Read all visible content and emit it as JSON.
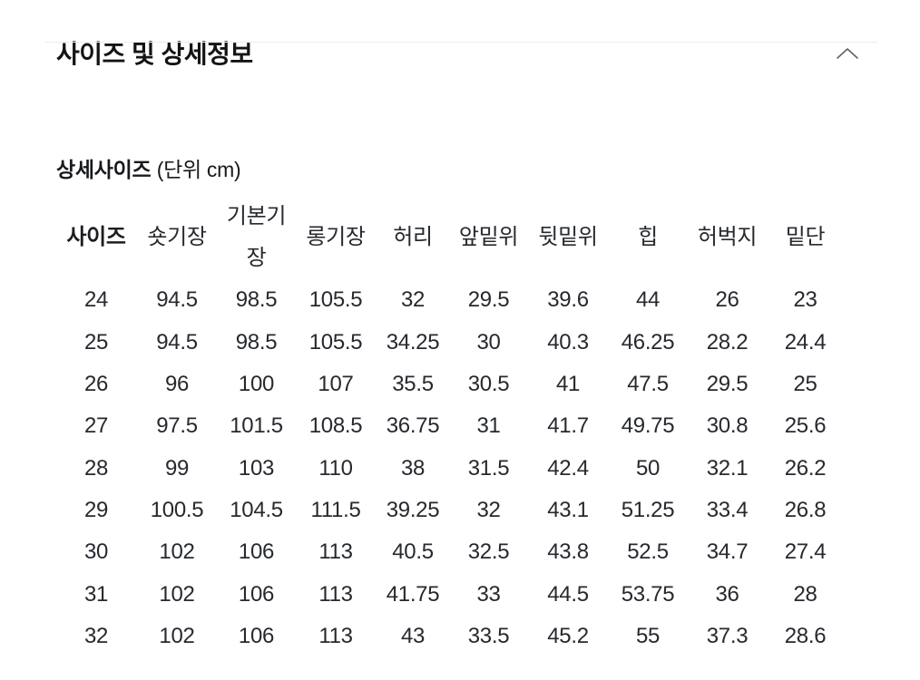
{
  "section_header": {
    "title": "사이즈 및 상세정보",
    "collapse_icon": "chevron-up-icon"
  },
  "size_table": {
    "caption_title": "상세사이즈",
    "caption_unit": "(단위 cm)",
    "columns": [
      "사이즈",
      "숏기장",
      "기본기장",
      "롱기장",
      "허리",
      "앞밑위",
      "뒷밑위",
      "힙",
      "허벅지",
      "밑단"
    ],
    "rows": [
      [
        "24",
        "94.5",
        "98.5",
        "105.5",
        "32",
        "29.5",
        "39.6",
        "44",
        "26",
        "23"
      ],
      [
        "25",
        "94.5",
        "98.5",
        "105.5",
        "34.25",
        "30",
        "40.3",
        "46.25",
        "28.2",
        "24.4"
      ],
      [
        "26",
        "96",
        "100",
        "107",
        "35.5",
        "30.5",
        "41",
        "47.5",
        "29.5",
        "25"
      ],
      [
        "27",
        "97.5",
        "101.5",
        "108.5",
        "36.75",
        "31",
        "41.7",
        "49.75",
        "30.8",
        "25.6"
      ],
      [
        "28",
        "99",
        "103",
        "110",
        "38",
        "31.5",
        "42.4",
        "50",
        "32.1",
        "26.2"
      ],
      [
        "29",
        "100.5",
        "104.5",
        "111.5",
        "39.25",
        "32",
        "43.1",
        "51.25",
        "33.4",
        "26.8"
      ],
      [
        "30",
        "102",
        "106",
        "113",
        "40.5",
        "32.5",
        "43.8",
        "52.5",
        "34.7",
        "27.4"
      ],
      [
        "31",
        "102",
        "106",
        "113",
        "41.75",
        "33",
        "44.5",
        "53.75",
        "36",
        "28"
      ],
      [
        "32",
        "102",
        "106",
        "113",
        "43",
        "33.5",
        "45.2",
        "55",
        "37.3",
        "28.6"
      ]
    ]
  },
  "colors": {
    "background": "#ffffff",
    "title_text": "#141414",
    "table_text": "#26292e",
    "divider": "#ececec",
    "chevron": "#5f6368"
  }
}
